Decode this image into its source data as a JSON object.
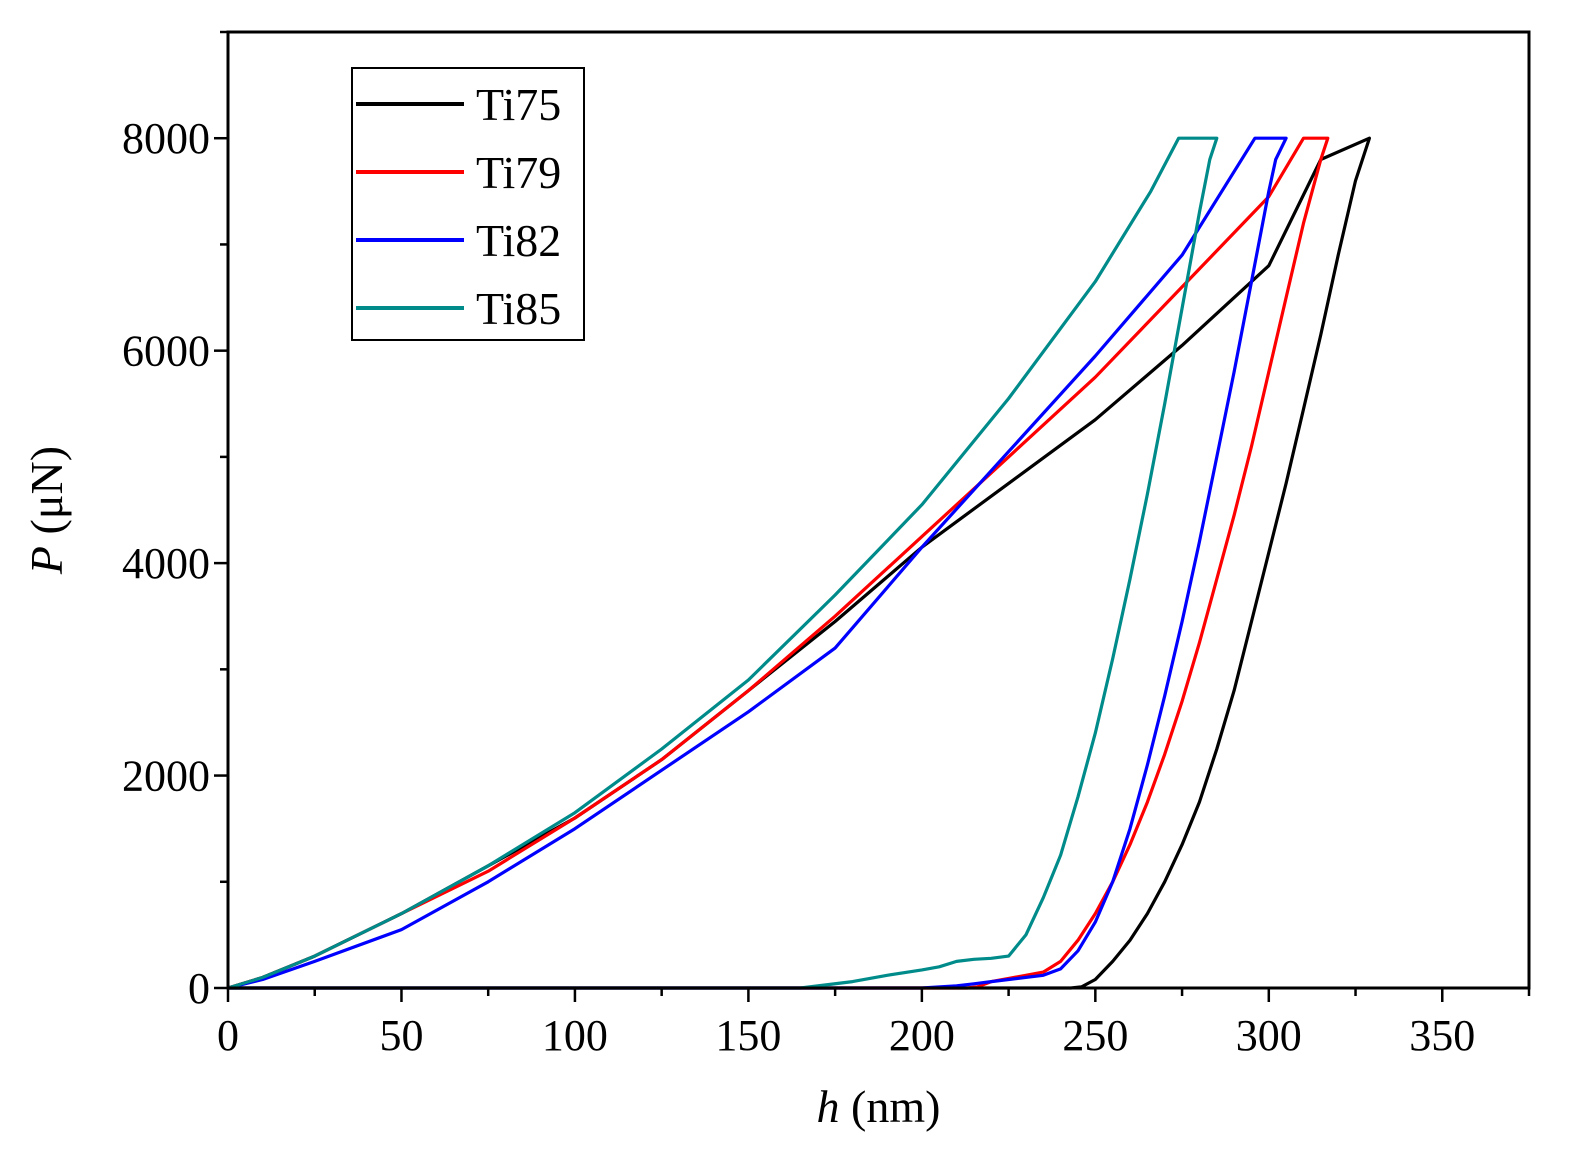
{
  "chart_data": {
    "type": "line",
    "title": "",
    "xlabel": "h (nm)",
    "xlabel_symbol": "h",
    "xlabel_unit": " (nm)",
    "ylabel": "P (μN)",
    "ylabel_symbol": "P",
    "ylabel_unit": " (μN)",
    "xlim": [
      0,
      375
    ],
    "ylim": [
      0,
      9000
    ],
    "xticks": [
      0,
      50,
      100,
      150,
      200,
      250,
      300,
      350
    ],
    "yticks": [
      0,
      2000,
      4000,
      6000,
      8000
    ],
    "xtick_labels": [
      "0",
      "50",
      "100",
      "150",
      "200",
      "250",
      "300",
      "350"
    ],
    "ytick_labels": [
      "0",
      "2000",
      "4000",
      "6000",
      "8000"
    ],
    "grid": false,
    "legend_position": "top-left",
    "series": [
      {
        "name": "Ti75",
        "color": "#000000",
        "x": [
          0,
          10,
          25,
          50,
          75,
          100,
          125,
          150,
          175,
          200,
          225,
          250,
          275,
          300,
          315,
          329,
          325,
          320,
          315,
          310,
          305,
          300,
          295,
          290,
          285,
          280,
          275,
          270,
          265,
          260,
          255,
          250,
          246,
          243,
          240,
          220,
          200,
          0
        ],
        "y": [
          0,
          100,
          300,
          700,
          1150,
          1600,
          2150,
          2800,
          3450,
          4150,
          4750,
          5350,
          6050,
          6800,
          7800,
          8000,
          7600,
          6900,
          6150,
          5450,
          4750,
          4100,
          3450,
          2800,
          2250,
          1750,
          1350,
          1000,
          700,
          450,
          250,
          80,
          10,
          0,
          0,
          0,
          0,
          0
        ]
      },
      {
        "name": "Ti79",
        "color": "#ff0000",
        "x": [
          0,
          10,
          25,
          50,
          75,
          100,
          125,
          150,
          175,
          200,
          225,
          250,
          275,
          300,
          310,
          317,
          315,
          310,
          305,
          300,
          295,
          290,
          285,
          280,
          275,
          270,
          265,
          260,
          255,
          250,
          245,
          240,
          235,
          230,
          225,
          220,
          216,
          213,
          200,
          0
        ],
        "y": [
          0,
          100,
          300,
          700,
          1100,
          1600,
          2150,
          2800,
          3500,
          4250,
          5000,
          5750,
          6600,
          7450,
          8000,
          8000,
          7800,
          7200,
          6500,
          5800,
          5100,
          4450,
          3850,
          3250,
          2700,
          2200,
          1750,
          1350,
          1000,
          700,
          450,
          250,
          150,
          120,
          90,
          60,
          10,
          0,
          0,
          0
        ]
      },
      {
        "name": "Ti82",
        "color": "#0000ff",
        "x": [
          0,
          10,
          25,
          50,
          75,
          100,
          125,
          150,
          175,
          200,
          225,
          250,
          275,
          296,
          305,
          302,
          300,
          295,
          290,
          285,
          280,
          275,
          270,
          265,
          260,
          255,
          250,
          245,
          240,
          235,
          230,
          225,
          220,
          215,
          210,
          200,
          190,
          185,
          0
        ],
        "y": [
          0,
          80,
          250,
          550,
          1000,
          1500,
          2050,
          2600,
          3200,
          4150,
          5050,
          5950,
          6900,
          8000,
          8000,
          7800,
          7500,
          6650,
          5800,
          5000,
          4200,
          3450,
          2750,
          2100,
          1500,
          1000,
          620,
          350,
          180,
          120,
          100,
          80,
          60,
          40,
          20,
          0,
          0,
          0,
          0
        ]
      },
      {
        "name": "Ti85",
        "color": "#008b8b",
        "x": [
          0,
          10,
          25,
          50,
          75,
          100,
          125,
          150,
          175,
          200,
          225,
          250,
          266,
          274,
          285,
          283,
          280,
          275,
          270,
          265,
          260,
          255,
          250,
          245,
          240,
          235,
          230,
          225,
          220,
          215,
          210,
          205,
          200,
          190,
          180,
          170,
          165,
          0
        ],
        "y": [
          0,
          100,
          300,
          700,
          1150,
          1650,
          2250,
          2900,
          3700,
          4550,
          5550,
          6650,
          7500,
          8000,
          8000,
          7800,
          7300,
          6400,
          5500,
          4650,
          3850,
          3100,
          2400,
          1800,
          1250,
          850,
          500,
          300,
          280,
          270,
          250,
          200,
          170,
          120,
          60,
          20,
          0,
          0
        ]
      }
    ]
  }
}
